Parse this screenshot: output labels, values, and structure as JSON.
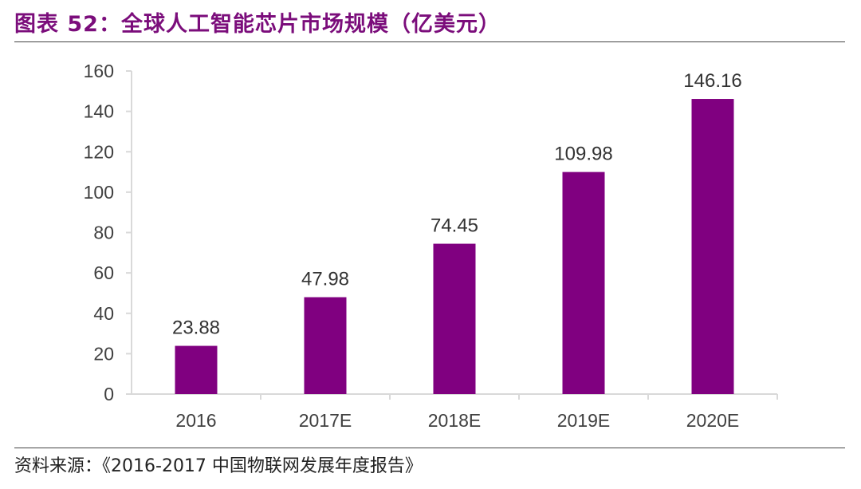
{
  "header": {
    "title": "图表 52：全球人工智能芯片市场规模（亿美元）"
  },
  "footer": {
    "source_label": "资料来源：",
    "source_text": "《2016-2017 中国物联网发展年度报告》"
  },
  "chart_data": {
    "type": "bar",
    "title": "全球人工智能芯片市场规模（亿美元）",
    "categories": [
      "2016",
      "2017E",
      "2018E",
      "2019E",
      "2020E"
    ],
    "values": [
      23.88,
      47.98,
      74.45,
      109.98,
      146.16
    ],
    "value_labels": [
      "23.88",
      "47.98",
      "74.45",
      "109.98",
      "146.16"
    ],
    "y_ticks": [
      "0",
      "20",
      "40",
      "60",
      "80",
      "100",
      "120",
      "140",
      "160"
    ],
    "ylim": [
      0,
      160
    ],
    "xlabel": "",
    "ylabel": "",
    "grid": false,
    "legend": "none",
    "bar_color": "#800080",
    "axis_color": "#d9d9d9"
  }
}
